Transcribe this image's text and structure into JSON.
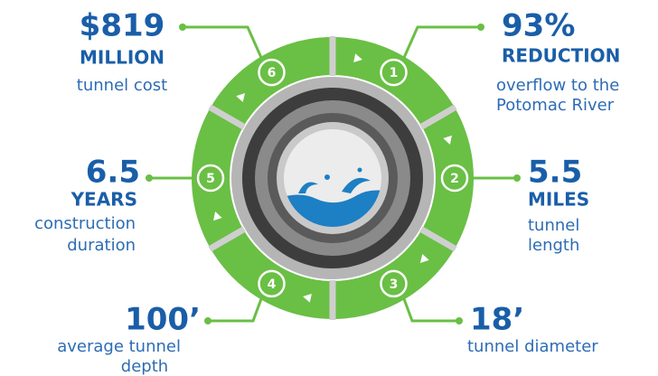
{
  "stats": [
    {
      "node": "1",
      "value": "93%",
      "unit": "REDUCTION",
      "description": [
        "overflow to the",
        "Potomac River"
      ]
    },
    {
      "node": "2",
      "value": "5.5",
      "unit": "MILES",
      "description": [
        "tunnel",
        "length"
      ]
    },
    {
      "node": "3",
      "value": "18’",
      "description": [
        "tunnel diameter"
      ]
    },
    {
      "node": "4",
      "value": "100’",
      "description": [
        "average tunnel",
        "depth"
      ]
    },
    {
      "node": "5",
      "value": "6.5",
      "unit": "YEARS",
      "description": [
        "construction",
        "duration"
      ]
    },
    {
      "node": "6",
      "value": "$819",
      "unit": "MILLION",
      "description": [
        "tunnel cost"
      ]
    }
  ]
}
